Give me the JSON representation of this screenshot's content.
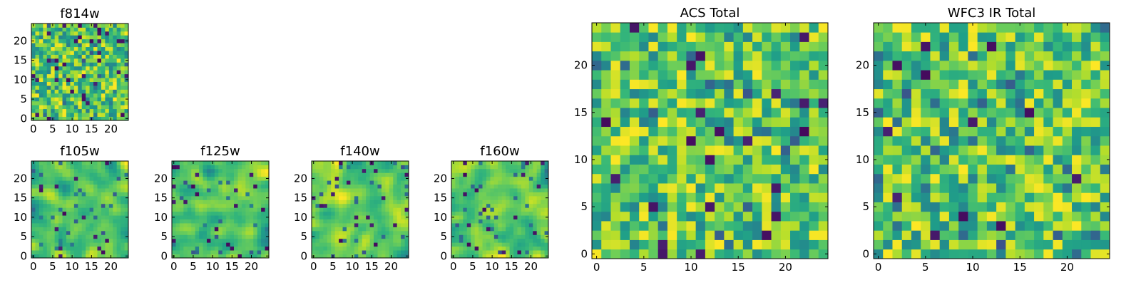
{
  "figure_description": "",
  "chart_data": [
    {
      "id": "f814w",
      "type": "heatmap",
      "title": "f814w",
      "grid_size": 25,
      "xlim": [
        0,
        24
      ],
      "ylim": [
        0,
        24
      ],
      "x_ticks": [
        "0",
        "5",
        "10",
        "15",
        "20"
      ],
      "y_ticks": [
        "0",
        "5",
        "10",
        "15",
        "20"
      ],
      "seed": 11,
      "smooth": 0,
      "colormap": "viridis"
    },
    {
      "id": "f105w",
      "type": "heatmap",
      "title": "f105w",
      "grid_size": 25,
      "xlim": [
        0,
        24
      ],
      "ylim": [
        0,
        24
      ],
      "x_ticks": [
        "0",
        "5",
        "10",
        "15",
        "20"
      ],
      "y_ticks": [
        "0",
        "5",
        "10",
        "15",
        "20"
      ],
      "seed": 23,
      "smooth": 2,
      "colormap": "viridis"
    },
    {
      "id": "f125w",
      "type": "heatmap",
      "title": "f125w",
      "grid_size": 25,
      "xlim": [
        0,
        24
      ],
      "ylim": [
        0,
        24
      ],
      "x_ticks": [
        "0",
        "5",
        "10",
        "15",
        "20"
      ],
      "y_ticks": [
        "0",
        "5",
        "10",
        "15",
        "20"
      ],
      "seed": 37,
      "smooth": 2,
      "colormap": "viridis"
    },
    {
      "id": "f140w",
      "type": "heatmap",
      "title": "f140w",
      "grid_size": 25,
      "xlim": [
        0,
        24
      ],
      "ylim": [
        0,
        24
      ],
      "x_ticks": [
        "0",
        "5",
        "10",
        "15",
        "20"
      ],
      "y_ticks": [
        "0",
        "5",
        "10",
        "15",
        "20"
      ],
      "seed": 41,
      "smooth": 2,
      "colormap": "viridis"
    },
    {
      "id": "f160w",
      "type": "heatmap",
      "title": "f160w",
      "grid_size": 25,
      "xlim": [
        0,
        24
      ],
      "ylim": [
        0,
        24
      ],
      "x_ticks": [
        "0",
        "5",
        "10",
        "15",
        "20"
      ],
      "y_ticks": [
        "0",
        "5",
        "10",
        "15",
        "20"
      ],
      "seed": 53,
      "smooth": 2,
      "colormap": "viridis"
    },
    {
      "id": "acs-total",
      "type": "heatmap",
      "title": "ACS Total",
      "grid_size": 25,
      "xlim": [
        0,
        24
      ],
      "ylim": [
        0,
        24
      ],
      "x_ticks": [
        "0",
        "5",
        "10",
        "15",
        "20"
      ],
      "y_ticks": [
        "0",
        "5",
        "10",
        "15",
        "20"
      ],
      "seed": 67,
      "smooth": 0,
      "colormap": "viridis"
    },
    {
      "id": "wfc3-ir-total",
      "type": "heatmap",
      "title": "WFC3 IR Total",
      "grid_size": 25,
      "xlim": [
        0,
        24
      ],
      "ylim": [
        0,
        24
      ],
      "x_ticks": [
        "0",
        "5",
        "10",
        "15",
        "20"
      ],
      "y_ticks": [
        "0",
        "5",
        "10",
        "15",
        "20"
      ],
      "seed": 79,
      "smooth": 0,
      "colormap": "viridis"
    }
  ]
}
